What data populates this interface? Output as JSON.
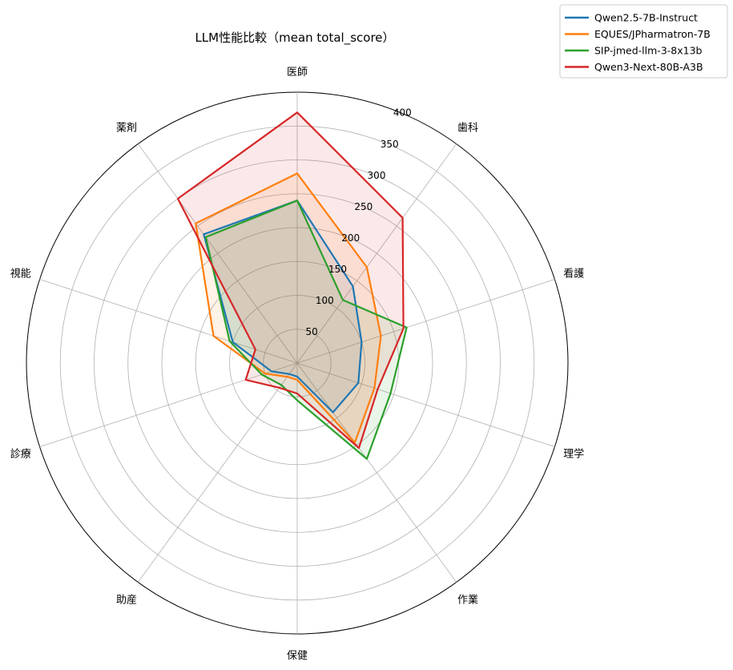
{
  "chart_data": {
    "type": "radar",
    "title": "LLM性能比較（mean total_score）",
    "categories": [
      "医師",
      "歯科",
      "看護",
      "理学",
      "作業",
      "保健",
      "助産",
      "診療",
      "視能",
      "薬剤"
    ],
    "rlim": [
      0,
      400
    ],
    "rticks": [
      50,
      100,
      150,
      200,
      250,
      300,
      350,
      400
    ],
    "grid": true,
    "legend_position": "top-right",
    "series": [
      {
        "name": "Qwen2.5-7B-Instruct",
        "color": "#1f77b4",
        "filled": true,
        "values": [
          240,
          140,
          100,
          95,
          90,
          20,
          20,
          40,
          100,
          235
        ]
      },
      {
        "name": "EQUES/JPharmatron-7B",
        "color": "#ff7f0e",
        "filled": true,
        "values": [
          280,
          175,
          130,
          120,
          145,
          25,
          25,
          50,
          130,
          255
        ]
      },
      {
        "name": "SIP-jmed-llm-3-8x13b",
        "color": "#2ca02c",
        "filled": true,
        "values": [
          240,
          115,
          170,
          145,
          175,
          55,
          40,
          55,
          105,
          230
        ]
      },
      {
        "name": "Qwen3-Next-80B-A3B",
        "color": "#d62728",
        "filled": true,
        "values": [
          370,
          265,
          165,
          125,
          155,
          45,
          45,
          80,
          65,
          300
        ]
      }
    ]
  }
}
